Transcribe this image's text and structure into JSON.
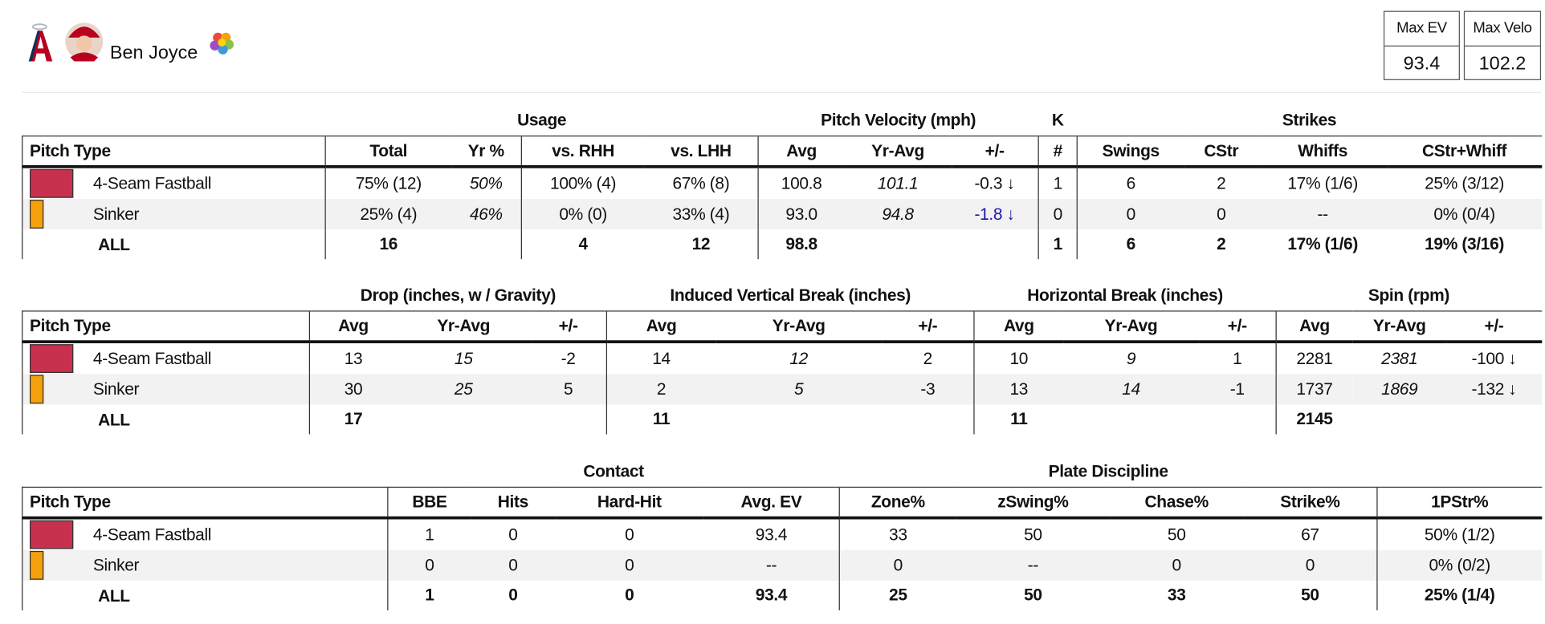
{
  "header": {
    "player": "Ben Joyce",
    "stats": [
      {
        "label": "Max EV",
        "value": "93.4"
      },
      {
        "label": "Max Velo",
        "value": "102.2"
      }
    ]
  },
  "tables": [
    {
      "groups": [
        {
          "span": 1
        },
        {
          "label": "Usage",
          "span": 4
        },
        {
          "label": "Pitch Velocity (mph)",
          "span": 3
        },
        {
          "label": "K",
          "span": 1
        },
        {
          "label": "Strikes",
          "span": 4
        }
      ],
      "columns": [
        "Pitch Type",
        "Total",
        "Yr %",
        "vs. RHH",
        "vs. LHH",
        "Avg",
        "Yr-Avg",
        "+/-",
        "#",
        "Swings",
        "CStr",
        "Whiffs",
        "CStr+Whiff"
      ],
      "rows": [
        {
          "pitch": "4-Seam Fastball",
          "color": "#c8314d",
          "cells": [
            "75% (12)",
            "50%",
            "100% (4)",
            "67% (8)",
            "100.8",
            "101.1",
            "-0.3 ↓",
            "1",
            "6",
            "2",
            "17% (1/6)",
            "25% (3/12)"
          ]
        },
        {
          "pitch": "Sinker",
          "color": "#f5a10d",
          "cells": [
            "25% (4)",
            "46%",
            "0% (0)",
            "33% (4)",
            "93.0",
            "94.8",
            "-1.8 ↓",
            "0",
            "0",
            "0",
            "--",
            "0% (0/4)"
          ]
        },
        {
          "pitch": "ALL",
          "cells": [
            "16",
            null,
            "4",
            "12",
            "98.8",
            null,
            null,
            "1",
            "6",
            "2",
            "17% (1/6)",
            "19% (3/16)"
          ]
        }
      ]
    },
    {
      "groups": [
        {
          "span": 1
        },
        {
          "label": "Drop (inches, w / Gravity)",
          "span": 3
        },
        {
          "label": "Induced Vertical Break (inches)",
          "span": 3
        },
        {
          "label": "Horizontal Break (inches)",
          "span": 3
        },
        {
          "label": "Spin (rpm)",
          "span": 3
        }
      ],
      "columns": [
        "Pitch Type",
        "Avg",
        "Yr-Avg",
        "+/-",
        "Avg",
        "Yr-Avg",
        "+/-",
        "Avg",
        "Yr-Avg",
        "+/-",
        "Avg",
        "Yr-Avg",
        "+/-"
      ],
      "rows": [
        {
          "pitch": "4-Seam Fastball",
          "color": "#c8314d",
          "cells": [
            "13",
            "15",
            "-2",
            "14",
            "12",
            "2",
            "10",
            "9",
            "1",
            "2281",
            "2381",
            "-100 ↓"
          ]
        },
        {
          "pitch": "Sinker",
          "color": "#f5a10d",
          "cells": [
            "30",
            "25",
            "5",
            "2",
            "5",
            "-3",
            "13",
            "14",
            "-1",
            "1737",
            "1869",
            "-132 ↓"
          ]
        },
        {
          "pitch": "ALL",
          "cells": [
            "17",
            null,
            null,
            "11",
            null,
            null,
            "11",
            null,
            null,
            "2145",
            null,
            null
          ]
        }
      ]
    },
    {
      "groups": [
        {
          "span": 1
        },
        {
          "label": "Contact",
          "span": 4
        },
        {
          "label": "Plate Discipline",
          "span": 4
        },
        {
          "span": 1
        }
      ],
      "columns": [
        "Pitch Type",
        "BBE",
        "Hits",
        "Hard-Hit",
        "Avg. EV",
        "Zone%",
        "zSwing%",
        "Chase%",
        "Strike%",
        "1PStr%"
      ],
      "rows": [
        {
          "pitch": "4-Seam Fastball",
          "color": "#c8314d",
          "cells": [
            "1",
            "0",
            "0",
            "93.4",
            "33",
            "50",
            "50",
            "67",
            "50% (1/2)"
          ]
        },
        {
          "pitch": "Sinker",
          "color": "#f5a10d",
          "cells": [
            "0",
            "0",
            "0",
            "--",
            "0",
            "--",
            "0",
            "0",
            "0% (0/2)"
          ]
        },
        {
          "pitch": "ALL",
          "cells": [
            "1",
            "0",
            "0",
            "93.4",
            "25",
            "50",
            "33",
            "50",
            "25% (1/4)"
          ]
        }
      ]
    }
  ]
}
